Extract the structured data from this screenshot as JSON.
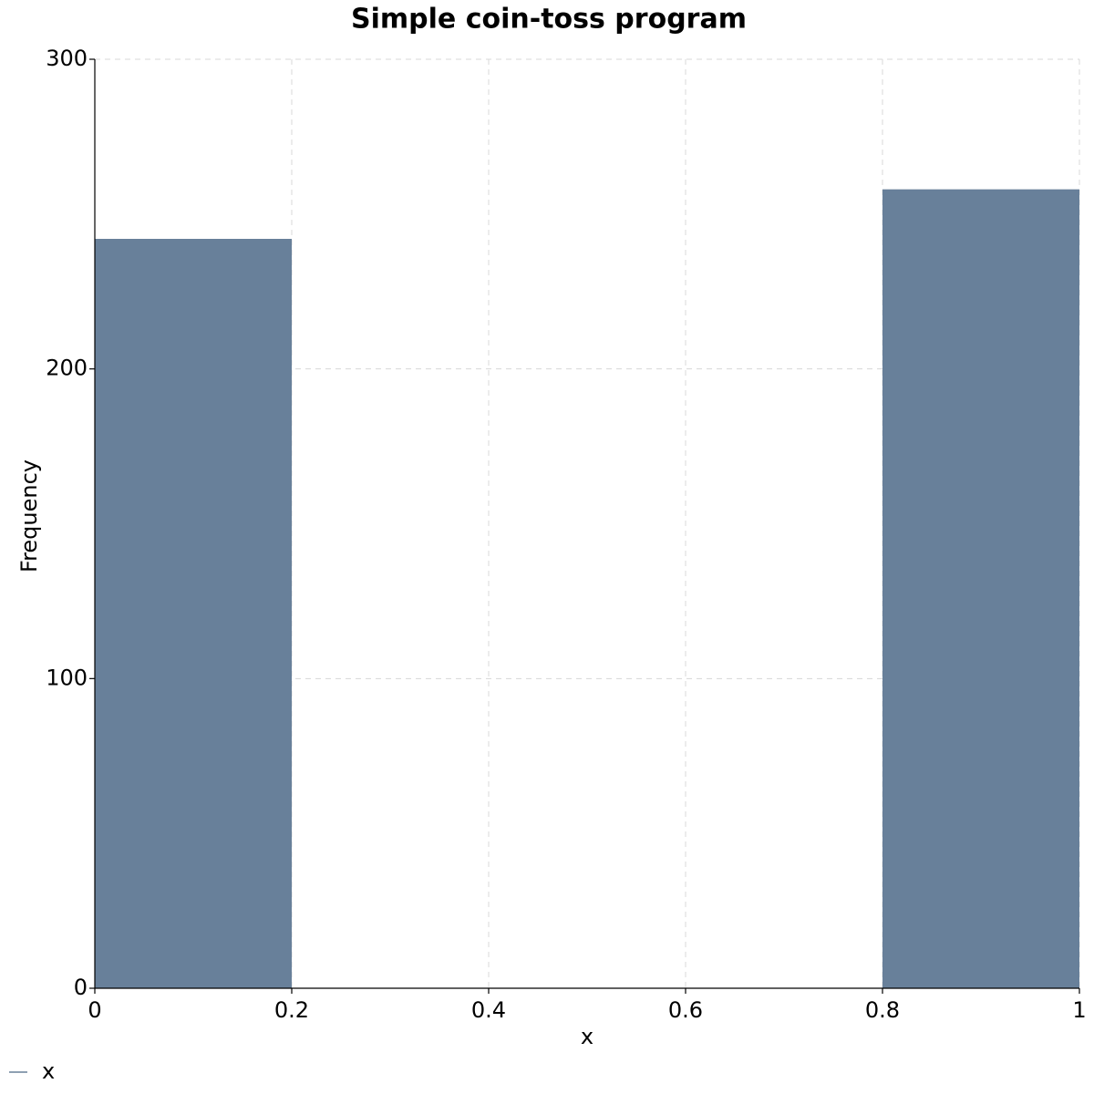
{
  "chart_data": {
    "type": "histogram",
    "title": "Simple coin-toss program",
    "xlabel": "x",
    "ylabel": "Frequency",
    "bins": [
      0,
      0.2,
      0.4,
      0.6,
      0.8,
      1
    ],
    "series": [
      {
        "name": "x",
        "color": "#68809a",
        "values": [
          242,
          0,
          0,
          0,
          258
        ]
      }
    ],
    "xlim": [
      0,
      1
    ],
    "ylim": [
      0,
      300
    ],
    "xticks": [
      0,
      0.2,
      0.4,
      0.6,
      0.8,
      1
    ],
    "yticks": [
      0,
      100,
      200,
      300
    ],
    "grid": true,
    "legend": "bottom-left"
  }
}
